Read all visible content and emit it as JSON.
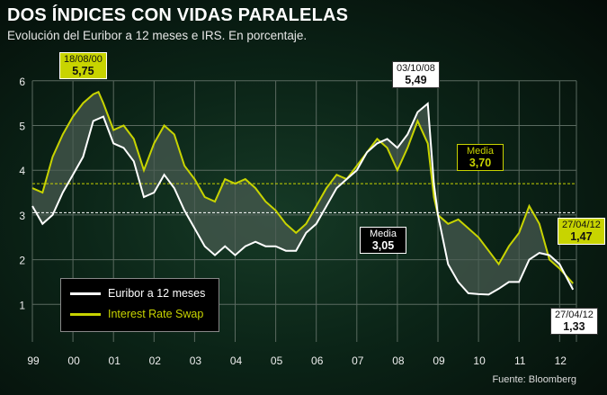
{
  "title": "DOS ÍNDICES CON VIDAS PARALELAS",
  "subtitle": "Evolución del Euribor a 12 meses e IRS. En porcentaje.",
  "source": "Fuente: Bloomberg",
  "colors": {
    "euribor": "#ffffff",
    "irs": "#c8d400",
    "fill": "#4a5c52"
  },
  "chart_data": {
    "type": "line",
    "title": "DOS ÍNDICES CON VIDAS PARALELAS",
    "xlim": [
      1999,
      2012.33
    ],
    "ylim": [
      0,
      6
    ],
    "grid": true,
    "legend": "bottom-left",
    "x_ticks": [
      "99",
      "00",
      "01",
      "02",
      "03",
      "04",
      "05",
      "06",
      "07",
      "08",
      "09",
      "10",
      "11",
      "12"
    ],
    "y_ticks": [
      "1",
      "2",
      "3",
      "4",
      "5",
      "6"
    ],
    "series": [
      {
        "name": "Euribor a 12 meses",
        "x": [
          1999,
          1999.25,
          1999.5,
          1999.75,
          2000,
          2000.25,
          2000.5,
          2000.75,
          2001,
          2001.25,
          2001.5,
          2001.75,
          2002,
          2002.25,
          2002.5,
          2002.75,
          2003,
          2003.25,
          2003.5,
          2003.75,
          2004,
          2004.25,
          2004.5,
          2004.75,
          2005,
          2005.25,
          2005.5,
          2005.75,
          2006,
          2006.25,
          2006.5,
          2006.75,
          2007,
          2007.25,
          2007.5,
          2007.75,
          2008,
          2008.25,
          2008.5,
          2008.75,
          2008.9,
          2009,
          2009.25,
          2009.5,
          2009.75,
          2010,
          2010.25,
          2010.5,
          2010.75,
          2011,
          2011.25,
          2011.5,
          2011.75,
          2012,
          2012.33
        ],
        "values": [
          3.2,
          2.8,
          3.0,
          3.5,
          3.9,
          4.3,
          5.1,
          5.2,
          4.6,
          4.5,
          4.2,
          3.4,
          3.5,
          3.9,
          3.6,
          3.1,
          2.7,
          2.3,
          2.1,
          2.3,
          2.1,
          2.3,
          2.4,
          2.3,
          2.3,
          2.2,
          2.2,
          2.6,
          2.8,
          3.2,
          3.6,
          3.8,
          4.0,
          4.4,
          4.6,
          4.7,
          4.5,
          4.8,
          5.3,
          5.49,
          3.7,
          3.0,
          1.9,
          1.5,
          1.25,
          1.23,
          1.22,
          1.35,
          1.5,
          1.5,
          2.0,
          2.15,
          2.1,
          1.9,
          1.33
        ]
      },
      {
        "name": "Interest Rate Swap",
        "x": [
          1999,
          1999.25,
          1999.5,
          1999.75,
          2000,
          2000.25,
          2000.5,
          2000.63,
          2000.75,
          2001,
          2001.25,
          2001.5,
          2001.75,
          2002,
          2002.25,
          2002.5,
          2002.75,
          2003,
          2003.25,
          2003.5,
          2003.75,
          2004,
          2004.25,
          2004.5,
          2004.75,
          2005,
          2005.25,
          2005.5,
          2005.75,
          2006,
          2006.25,
          2006.5,
          2006.75,
          2007,
          2007.25,
          2007.5,
          2007.75,
          2008,
          2008.25,
          2008.5,
          2008.75,
          2008.9,
          2009,
          2009.25,
          2009.5,
          2009.75,
          2010,
          2010.25,
          2010.5,
          2010.75,
          2011,
          2011.25,
          2011.5,
          2011.75,
          2012,
          2012.33
        ],
        "values": [
          3.6,
          3.5,
          4.3,
          4.8,
          5.2,
          5.5,
          5.7,
          5.75,
          5.5,
          4.9,
          5.0,
          4.7,
          4.0,
          4.6,
          5.0,
          4.8,
          4.1,
          3.8,
          3.4,
          3.3,
          3.8,
          3.7,
          3.8,
          3.6,
          3.3,
          3.1,
          2.8,
          2.6,
          2.8,
          3.2,
          3.6,
          3.9,
          3.8,
          4.1,
          4.4,
          4.7,
          4.5,
          4.0,
          4.5,
          5.1,
          4.6,
          3.4,
          3.0,
          2.8,
          2.9,
          2.7,
          2.5,
          2.2,
          1.9,
          2.3,
          2.6,
          3.2,
          2.8,
          2.0,
          1.8,
          1.47
        ]
      }
    ],
    "reference_lines": [
      {
        "label": "Media",
        "value": 3.7,
        "text": "3,70",
        "series": "Interest Rate Swap"
      },
      {
        "label": "Media",
        "value": 3.05,
        "text": "3,05",
        "series": "Euribor a 12 meses"
      }
    ],
    "annotations": [
      {
        "date": "18/08/00",
        "value": "5,75",
        "series": "Interest Rate Swap"
      },
      {
        "date": "03/10/08",
        "value": "5,49",
        "series": "Euribor a 12 meses"
      },
      {
        "date": "27/04/12",
        "value": "1,47",
        "series": "Interest Rate Swap"
      },
      {
        "date": "27/04/12",
        "value": "1,33",
        "series": "Euribor a 12 meses"
      }
    ]
  }
}
